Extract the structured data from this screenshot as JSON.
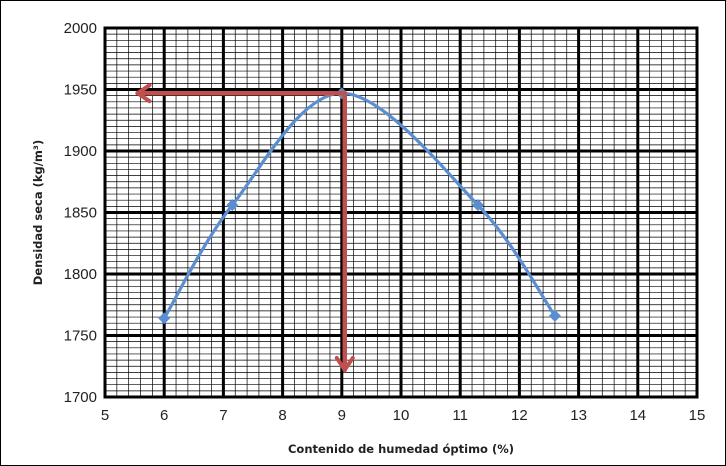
{
  "chart_data": {
    "type": "line",
    "title": "",
    "xlabel": "Contenido de humedad óptimo (%)",
    "ylabel": "Densidad seca (kg/m³)",
    "xlim": [
      5,
      15
    ],
    "ylim": [
      1700,
      2000
    ],
    "x_ticks": [
      5,
      6,
      7,
      8,
      9,
      10,
      11,
      12,
      13,
      14,
      15
    ],
    "y_ticks": [
      1700,
      1750,
      1800,
      1850,
      1900,
      1950,
      2000
    ],
    "grid": true,
    "series": [
      {
        "color": "#5b8ed0",
        "marker": "diamond",
        "smooth": true,
        "x": [
          6.0,
          7.15,
          9.0,
          11.3,
          12.6
        ],
        "y": [
          1764,
          1856,
          1947,
          1856,
          1766
        ]
      }
    ],
    "annotations": [
      {
        "type": "arrow-left",
        "from": [
          9.05,
          1947
        ],
        "to": [
          5.55,
          1947
        ],
        "color": "#c0504d"
      },
      {
        "type": "arrow-down",
        "from": [
          9.05,
          1947
        ],
        "to": [
          9.05,
          1722
        ],
        "color": "#c0504d"
      }
    ]
  }
}
